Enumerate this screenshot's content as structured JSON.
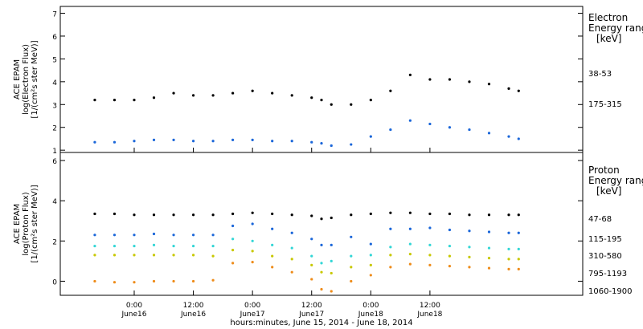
{
  "chart_data": [
    {
      "panel": "electron",
      "type": "scatter",
      "ylabel_lines": [
        "ACE EPAM",
        "log(Electron Flux)",
        "[1/(cm²s ster MeV)]"
      ],
      "ylim": [
        0.9,
        7.3
      ],
      "yticks": [
        1,
        2,
        3,
        4,
        5,
        6,
        7
      ],
      "legend_title_lines": [
        "Electron",
        "Energy ranges",
        "[keV]"
      ],
      "series": [
        {
          "name": "38-53",
          "color": "#000000",
          "x": [
            -8,
            -4,
            0,
            4,
            8,
            12,
            16,
            20,
            24,
            28,
            32,
            36,
            38,
            40,
            44,
            48,
            52,
            56,
            60,
            64,
            68,
            72,
            76,
            78
          ],
          "values": [
            3.2,
            3.2,
            3.2,
            3.3,
            3.5,
            3.4,
            3.4,
            3.5,
            3.6,
            3.5,
            3.4,
            3.3,
            3.2,
            3.0,
            3.0,
            3.2,
            3.6,
            4.3,
            4.1,
            4.1,
            4.0,
            3.9,
            3.7,
            3.6
          ]
        },
        {
          "name": "175-315",
          "color": "#1a66d9",
          "x": [
            -8,
            -4,
            0,
            4,
            8,
            12,
            16,
            20,
            24,
            28,
            32,
            36,
            38,
            40,
            44,
            48,
            52,
            56,
            60,
            64,
            68,
            72,
            76,
            78
          ],
          "values": [
            1.35,
            1.35,
            1.4,
            1.45,
            1.45,
            1.4,
            1.4,
            1.45,
            1.45,
            1.4,
            1.4,
            1.35,
            1.3,
            1.2,
            1.25,
            1.6,
            1.9,
            2.3,
            2.15,
            2.0,
            1.9,
            1.75,
            1.6,
            1.5
          ]
        }
      ]
    },
    {
      "panel": "proton",
      "type": "scatter",
      "ylabel_lines": [
        "ACE EPAM",
        "log(Proton Flux)",
        "[1/(cm²s ster MeV)]"
      ],
      "ylim": [
        -0.7,
        6.4
      ],
      "yticks": [
        0,
        2,
        4,
        6
      ],
      "legend_title_lines": [
        "Proton",
        "Energy ranges",
        "[keV]"
      ],
      "series": [
        {
          "name": "47-68",
          "color": "#000000",
          "x": [
            -8,
            -4,
            0,
            4,
            8,
            12,
            16,
            20,
            24,
            28,
            32,
            36,
            38,
            40,
            44,
            48,
            52,
            56,
            60,
            64,
            68,
            72,
            76,
            78
          ],
          "values": [
            3.35,
            3.35,
            3.3,
            3.3,
            3.3,
            3.3,
            3.3,
            3.35,
            3.4,
            3.35,
            3.3,
            3.25,
            3.1,
            3.15,
            3.3,
            3.35,
            3.4,
            3.4,
            3.35,
            3.35,
            3.3,
            3.3,
            3.3,
            3.3
          ]
        },
        {
          "name": "115-195",
          "color": "#1a66d9",
          "x": [
            -8,
            -4,
            0,
            4,
            8,
            12,
            16,
            20,
            24,
            28,
            32,
            36,
            38,
            40,
            44,
            48,
            52,
            56,
            60,
            64,
            68,
            72,
            76,
            78
          ],
          "values": [
            2.3,
            2.3,
            2.3,
            2.35,
            2.3,
            2.3,
            2.3,
            2.75,
            2.85,
            2.6,
            2.4,
            2.1,
            1.8,
            1.8,
            2.2,
            1.85,
            2.6,
            2.6,
            2.65,
            2.55,
            2.5,
            2.45,
            2.4,
            2.4
          ]
        },
        {
          "name": "310-580",
          "color": "#33d6d6",
          "x": [
            -8,
            -4,
            0,
            4,
            8,
            12,
            16,
            20,
            24,
            28,
            32,
            36,
            38,
            40,
            44,
            48,
            52,
            56,
            60,
            64,
            68,
            72,
            76,
            78
          ],
          "values": [
            1.75,
            1.75,
            1.75,
            1.8,
            1.75,
            1.75,
            1.75,
            2.1,
            2.0,
            1.8,
            1.65,
            1.25,
            0.9,
            1.0,
            1.25,
            1.3,
            1.7,
            1.85,
            1.8,
            1.75,
            1.7,
            1.65,
            1.6,
            1.6
          ]
        },
        {
          "name": "795-1193",
          "color": "#c8c800",
          "x": [
            -8,
            -4,
            0,
            4,
            8,
            12,
            16,
            20,
            24,
            28,
            32,
            36,
            38,
            40,
            44,
            48,
            52,
            56,
            60,
            64,
            68,
            72,
            76,
            78
          ],
          "values": [
            1.3,
            1.3,
            1.3,
            1.3,
            1.3,
            1.3,
            1.25,
            1.55,
            1.5,
            1.25,
            1.1,
            0.8,
            0.45,
            0.4,
            0.7,
            0.8,
            1.3,
            1.35,
            1.3,
            1.25,
            1.2,
            1.15,
            1.1,
            1.1
          ]
        },
        {
          "name": "1060-1900",
          "color": "#ee8c1a",
          "x": [
            -8,
            -4,
            0,
            4,
            8,
            12,
            16,
            20,
            24,
            28,
            32,
            36,
            38,
            40,
            44,
            48,
            52,
            56,
            60,
            64,
            68,
            72,
            76,
            78
          ],
          "values": [
            0.0,
            -0.05,
            -0.05,
            0.0,
            0.0,
            0.0,
            0.05,
            0.9,
            0.95,
            0.7,
            0.45,
            0.1,
            -0.4,
            -0.5,
            0.0,
            0.3,
            0.7,
            0.85,
            0.8,
            0.75,
            0.7,
            0.65,
            0.6,
            0.6
          ]
        }
      ]
    }
  ],
  "time_axis": {
    "label": "hours:minutes, June 15, 2014 - June 18, 2014",
    "xlim": [
      -15,
      91
    ],
    "ticks": [
      {
        "x": 0,
        "time": "0:00",
        "date": "June16"
      },
      {
        "x": 12,
        "time": "12:00",
        "date": "June16"
      },
      {
        "x": 24,
        "time": "0:00",
        "date": "June17"
      },
      {
        "x": 36,
        "time": "12:00",
        "date": "June17"
      },
      {
        "x": 48,
        "time": "0:00",
        "date": "June18"
      },
      {
        "x": 60,
        "time": "12:00",
        "date": "June18"
      }
    ]
  }
}
